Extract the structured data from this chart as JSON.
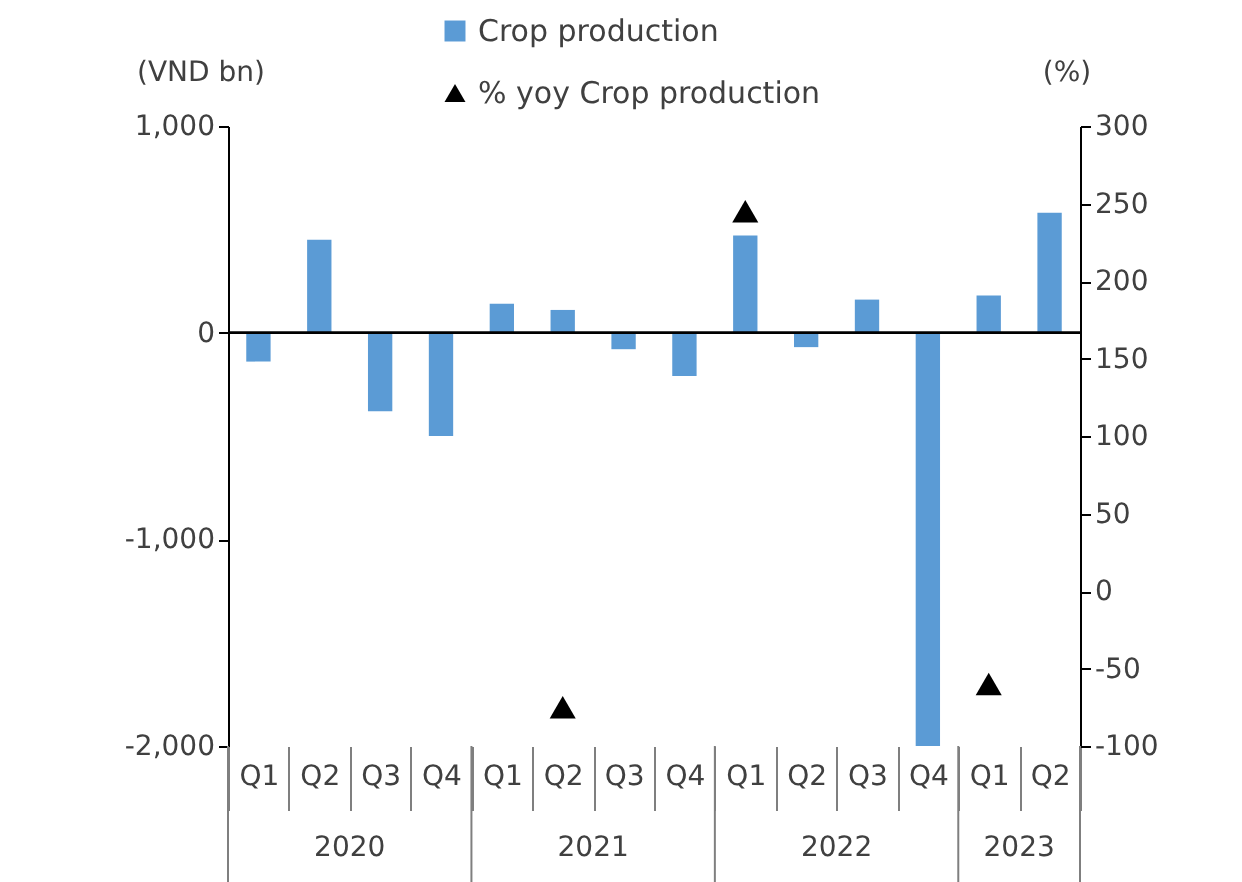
{
  "chart_data": {
    "type": "bar",
    "categories": [
      "Q1",
      "Q2",
      "Q3",
      "Q4",
      "Q1",
      "Q2",
      "Q3",
      "Q4",
      "Q1",
      "Q2",
      "Q3",
      "Q4",
      "Q1",
      "Q2"
    ],
    "series": [
      {
        "name": "Crop production",
        "color": "#5b9bd5",
        "values": [
          -140,
          450,
          -380,
          -500,
          140,
          110,
          -80,
          -210,
          470,
          -70,
          160,
          -2000,
          180,
          580
        ]
      },
      {
        "name": "% yoy Crop production",
        "type": "scatter",
        "axis": "y2",
        "color": "#000000",
        "values": [
          null,
          null,
          null,
          null,
          null,
          -75,
          null,
          null,
          245,
          null,
          null,
          null,
          -60,
          null
        ]
      }
    ],
    "marker": "triangle",
    "ylabel": "(VND bn)",
    "y2label": "(%)",
    "ylim": [
      -2000,
      1000
    ],
    "yticks": [
      {
        "value": -2000,
        "label": "-2,000"
      },
      {
        "value": -1000,
        "label": "-1,000"
      },
      0,
      {
        "value": 1000,
        "label": "1,000"
      }
    ],
    "y2lim": [
      -100,
      300
    ],
    "y2ticks": [
      -100,
      -50,
      0,
      50,
      100,
      150,
      200,
      250,
      300
    ],
    "ref_lines": [
      {
        "axis": "y",
        "value": 0,
        "color": "#000000"
      }
    ],
    "annotations": [
      "2020",
      "2021",
      "2022",
      "2023"
    ],
    "legend": "top",
    "grid": false
  }
}
